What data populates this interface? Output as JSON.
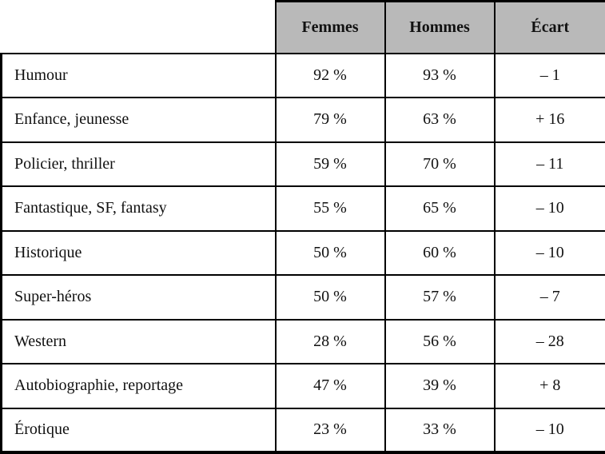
{
  "colors": {
    "header_bg": "#b9b9b9",
    "border": "#000000",
    "page_bg": "#ffffff",
    "text": "#111111"
  },
  "table": {
    "columns": [
      "",
      "Femmes",
      "Hommes",
      "Écart"
    ],
    "rows": [
      {
        "label": "Humour",
        "femmes": "92 %",
        "hommes": "93 %",
        "ecart": "– 1"
      },
      {
        "label": "Enfance, jeunesse",
        "femmes": "79 %",
        "hommes": "63 %",
        "ecart": "+ 16"
      },
      {
        "label": "Policier, thriller",
        "femmes": "59 %",
        "hommes": "70 %",
        "ecart": "– 11"
      },
      {
        "label": "Fantastique, SF, fantasy",
        "femmes": "55 %",
        "hommes": "65 %",
        "ecart": "– 10"
      },
      {
        "label": "Historique",
        "femmes": "50 %",
        "hommes": "60 %",
        "ecart": "– 10"
      },
      {
        "label": "Super-héros",
        "femmes": "50 %",
        "hommes": "57 %",
        "ecart": "– 7"
      },
      {
        "label": "Western",
        "femmes": "28 %",
        "hommes": "56 %",
        "ecart": "– 28"
      },
      {
        "label": "Autobiographie, reportage",
        "femmes": "47 %",
        "hommes": "39 %",
        "ecart": "+ 8"
      },
      {
        "label": "Érotique",
        "femmes": "23 %",
        "hommes": "33 %",
        "ecart": "– 10"
      }
    ]
  },
  "chart_data": {
    "type": "table",
    "title": "",
    "categories": [
      "Humour",
      "Enfance, jeunesse",
      "Policier, thriller",
      "Fantastique, SF, fantasy",
      "Historique",
      "Super-héros",
      "Western",
      "Autobiographie, reportage",
      "Érotique"
    ],
    "series": [
      {
        "name": "Femmes",
        "unit": "%",
        "values": [
          92,
          79,
          59,
          55,
          50,
          50,
          28,
          47,
          23
        ]
      },
      {
        "name": "Hommes",
        "unit": "%",
        "values": [
          93,
          63,
          70,
          65,
          60,
          57,
          56,
          39,
          33
        ]
      },
      {
        "name": "Écart",
        "unit": "points",
        "values": [
          -1,
          16,
          -11,
          -10,
          -10,
          -7,
          -28,
          8,
          -10
        ]
      }
    ],
    "layout": {
      "header_background": "#b9b9b9",
      "grid": "full-borders",
      "first_column_header_blank": true
    }
  }
}
